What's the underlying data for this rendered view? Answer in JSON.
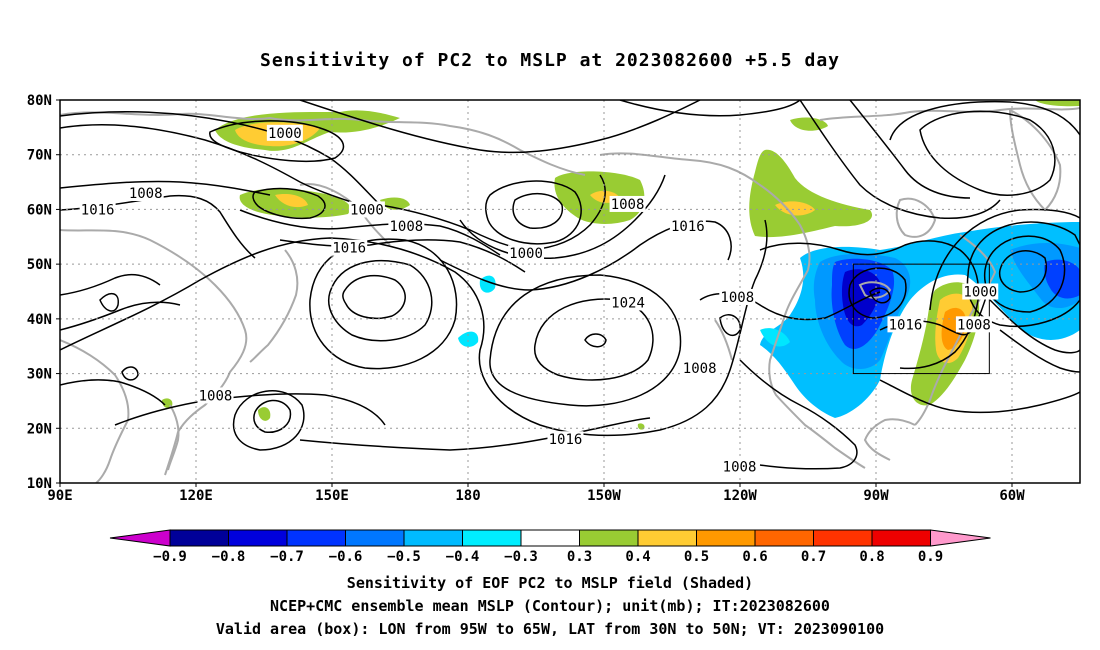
{
  "title": "Sensitivity of PC2 to MSLP at 2023082600 +5.5 day",
  "map": {
    "lat_labels": [
      "80N",
      "70N",
      "60N",
      "50N",
      "40N",
      "30N",
      "20N",
      "10N"
    ],
    "lon_labels": [
      "90E",
      "120E",
      "150E",
      "180",
      "150W",
      "120W",
      "90W",
      "60W"
    ],
    "extent": {
      "lon_min": 90,
      "lon_max": 315,
      "lat_min": 10,
      "lat_max": 80
    },
    "contour_labels": [
      {
        "text": "1000",
        "lon": 139.6,
        "lat": 74
      },
      {
        "text": "1008",
        "lon": 108.9,
        "lat": 63
      },
      {
        "text": "1016",
        "lon": 98.3,
        "lat": 60
      },
      {
        "text": "1000",
        "lon": 157.7,
        "lat": 60
      },
      {
        "text": "1008",
        "lon": 166.4,
        "lat": 57
      },
      {
        "text": "1016",
        "lon": 153.8,
        "lat": 53
      },
      {
        "text": "1000",
        "lon": 192.8,
        "lat": 52
      },
      {
        "text": "1008",
        "lon": 215.2,
        "lat": 61
      },
      {
        "text": "1016",
        "lon": 228.5,
        "lat": 57
      },
      {
        "text": "1024",
        "lon": 215.3,
        "lat": 43
      },
      {
        "text": "1008",
        "lon": 124.3,
        "lat": 26
      },
      {
        "text": "1016",
        "lon": 201.5,
        "lat": 18
      },
      {
        "text": "1008",
        "lon": 239.4,
        "lat": 44
      },
      {
        "text": "1008",
        "lon": 231.1,
        "lat": 31
      },
      {
        "text": "1008",
        "lon": 239.9,
        "lat": 13
      },
      {
        "text": "1016",
        "lon": 276.5,
        "lat": 39
      },
      {
        "text": "1000",
        "lon": 293.0,
        "lat": 45
      },
      {
        "text": "1008",
        "lon": 291.6,
        "lat": 39
      }
    ],
    "colors": {
      "cyan": "#00e6ff",
      "sky": "#00bfff",
      "azure": "#0099ff",
      "blue": "#0040ff",
      "navy": "#0000cc",
      "green": "#99cc33",
      "yellow": "#ffcc33",
      "orange": "#ff9900",
      "coast": "#aaaaaa",
      "grid": "#999999"
    },
    "valid_box": {
      "lon_min": 265,
      "lon_max": 295,
      "lat_min": 30,
      "lat_max": 50
    }
  },
  "colorbar": {
    "labels": [
      "-0.9",
      "-0.8",
      "-0.7",
      "-0.6",
      "-0.5",
      "-0.4",
      "-0.3",
      "0.3",
      "0.4",
      "0.5",
      "0.6",
      "0.7",
      "0.8",
      "0.9"
    ],
    "colors": [
      "#000099",
      "#0000dd",
      "#0033ff",
      "#0077ff",
      "#00bbff",
      "#00eeff",
      "#ffffff",
      "#99cc33",
      "#ffcc33",
      "#ff9900",
      "#ff6600",
      "#ff3300",
      "#ee0000"
    ],
    "low_end_color": "#cc00cc",
    "high_end_color": "#ff99cc"
  },
  "caption_lines": [
    "Sensitivity of EOF PC2 to MSLP field (Shaded)",
    "NCEP+CMC ensemble mean MSLP (Contour); unit(mb); IT:2023082600",
    "Valid area (box): LON from 95W to 65W, LAT from 30N to 50N; VT: 2023090100"
  ]
}
